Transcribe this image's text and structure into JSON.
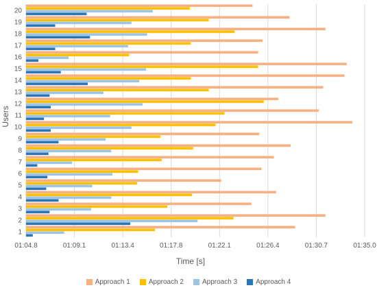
{
  "chart_data": {
    "type": "bar",
    "orientation": "horizontal",
    "title": "",
    "xlabel": "Time [s]",
    "ylabel": "Users",
    "xlim": [
      64.8,
      95.0
    ],
    "x_ticks": [
      "01:04.8",
      "01:09.1",
      "01:13.4",
      "01:17.8",
      "01:22.1",
      "01:26.4",
      "01:30.7",
      "01:35.0"
    ],
    "categories": [
      "1",
      "2",
      "3",
      "4",
      "5",
      "6",
      "7",
      "8",
      "9",
      "10",
      "11",
      "12",
      "13",
      "14",
      "15",
      "16",
      "17",
      "18",
      "19",
      "20"
    ],
    "grid": "vertical",
    "legend_position": "bottom",
    "series": [
      {
        "name": "Approach 1",
        "color": "#F4B183",
        "values": [
          88.8,
          91.5,
          84.9,
          87.1,
          82.2,
          85.8,
          86.9,
          88.4,
          85.6,
          93.9,
          90.9,
          87.3,
          91.3,
          93.2,
          93.4,
          85.5,
          85.9,
          91.5,
          88.3,
          85.0
        ]
      },
      {
        "name": "Approach 2",
        "color": "#FFC000",
        "values": [
          76.3,
          83.3,
          77.4,
          79.6,
          74.7,
          74.8,
          76.9,
          79.7,
          76.8,
          81.7,
          82.5,
          86.0,
          81.1,
          79.5,
          85.5,
          74.0,
          79.5,
          83.4,
          81.1,
          79.4
        ]
      },
      {
        "name": "Approach 3",
        "color": "#9DC3E6",
        "values": [
          68.2,
          80.1,
          70.6,
          72.4,
          70.7,
          72.5,
          68.9,
          72.4,
          71.9,
          74.2,
          72.3,
          75.2,
          71.7,
          74.9,
          75.5,
          68.6,
          73.9,
          75.6,
          74.2,
          76.1
        ]
      },
      {
        "name": "Approach 4",
        "color": "#2E75B6",
        "values": [
          65.4,
          74.1,
          66.9,
          67.7,
          66.6,
          66.7,
          65.8,
          66.8,
          67.7,
          67.0,
          66.4,
          67.0,
          66.9,
          70.3,
          67.9,
          65.9,
          67.4,
          70.5,
          67.4,
          70.2
        ]
      }
    ]
  }
}
